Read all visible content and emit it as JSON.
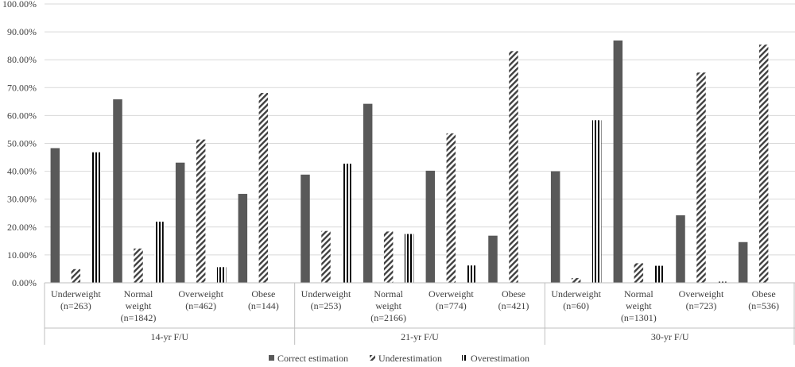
{
  "chart_data": {
    "type": "bar",
    "title": "",
    "xlabel": "",
    "ylabel": "",
    "ylim": [
      0,
      100
    ],
    "yticks": [
      "0.00%",
      "10.00%",
      "20.00%",
      "30.00%",
      "40.00%",
      "50.00%",
      "60.00%",
      "70.00%",
      "80.00%",
      "90.00%",
      "100.00%"
    ],
    "grid": true,
    "legend_position": "bottom",
    "groups": [
      {
        "label": "14-yr F/U",
        "categories": [
          {
            "line1": "Underweight",
            "line2": "(n=263)",
            "line3": ""
          },
          {
            "line1": "Normal",
            "line2": "weight",
            "line3": "(n=1842)"
          },
          {
            "line1": "Overweight",
            "line2": "(n=462)",
            "line3": ""
          },
          {
            "line1": "Obese",
            "line2": "(n=144)",
            "line3": ""
          }
        ]
      },
      {
        "label": "21-yr F/U",
        "categories": [
          {
            "line1": "Underweight",
            "line2": "(n=253)",
            "line3": ""
          },
          {
            "line1": "Normal",
            "line2": "weight",
            "line3": "(n=2166)"
          },
          {
            "line1": "Overweight",
            "line2": "(n=774)",
            "line3": ""
          },
          {
            "line1": "Obese",
            "line2": "(n=421)",
            "line3": ""
          }
        ]
      },
      {
        "label": "30-yr F/U",
        "categories": [
          {
            "line1": "Underweight",
            "line2": "(n=60)",
            "line3": ""
          },
          {
            "line1": "Normal",
            "line2": "weight",
            "line3": "(n=1301)"
          },
          {
            "line1": "Overweight",
            "line2": "(n=723)",
            "line3": ""
          },
          {
            "line1": "Obese",
            "line2": "(n=536)",
            "line3": ""
          }
        ]
      }
    ],
    "series": [
      {
        "name": "Correct estimation",
        "pattern": "solid",
        "color": "#595959",
        "values": [
          48.3,
          65.8,
          43.1,
          31.9,
          38.8,
          64.2,
          40.2,
          16.9,
          40.0,
          86.9,
          24.2,
          14.6
        ]
      },
      {
        "name": "Underestimation",
        "pattern": "diagonal",
        "color": "#404040",
        "values": [
          4.9,
          12.3,
          51.4,
          68.1,
          18.6,
          18.4,
          53.6,
          83.1,
          1.7,
          7.0,
          75.4,
          85.4
        ]
      },
      {
        "name": "Overestimation",
        "pattern": "vertical",
        "color": "#000000",
        "values": [
          46.8,
          21.9,
          5.6,
          0,
          42.7,
          17.5,
          6.2,
          0,
          58.3,
          6.1,
          0.4,
          0
        ]
      }
    ]
  }
}
